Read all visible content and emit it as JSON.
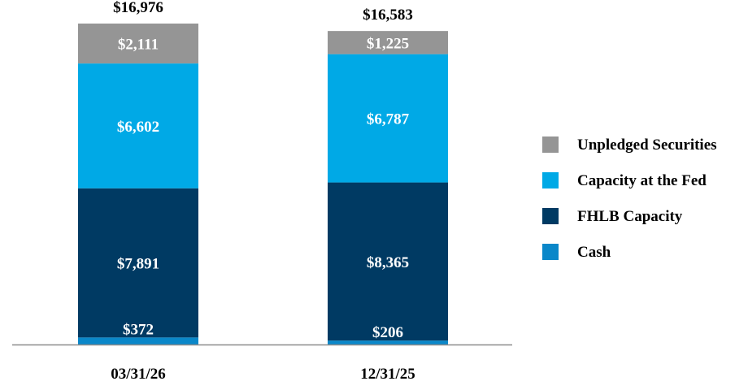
{
  "chart_data": {
    "type": "bar",
    "stacked": true,
    "categories": [
      "03/31/26",
      "12/31/25"
    ],
    "series": [
      {
        "name": "Cash",
        "values": [
          372,
          206
        ],
        "labels": [
          "$372",
          "$206"
        ],
        "color": "#0a87c9"
      },
      {
        "name": "FHLB Capacity",
        "values": [
          7891,
          8365
        ],
        "labels": [
          "$7,891",
          "$8,365"
        ],
        "color": "#003a63"
      },
      {
        "name": "Capacity at the Fed",
        "values": [
          6602,
          6787
        ],
        "labels": [
          "$6,602",
          "$6,787"
        ],
        "color": "#00a9e6"
      },
      {
        "name": "Unpledged Securities",
        "values": [
          2111,
          1225
        ],
        "labels": [
          "$2,111",
          "$1,225"
        ],
        "color": "#959595"
      }
    ],
    "totals": [
      16976,
      16583
    ],
    "total_labels": [
      "$16,976",
      "$16,583"
    ],
    "legend_order": [
      "Unpledged Securities",
      "Capacity at the Fed",
      "FHLB Capacity",
      "Cash"
    ],
    "legend_position": "right",
    "grid": false,
    "ylim": [
      0,
      17000
    ],
    "title": "",
    "xlabel": "",
    "ylabel": ""
  }
}
